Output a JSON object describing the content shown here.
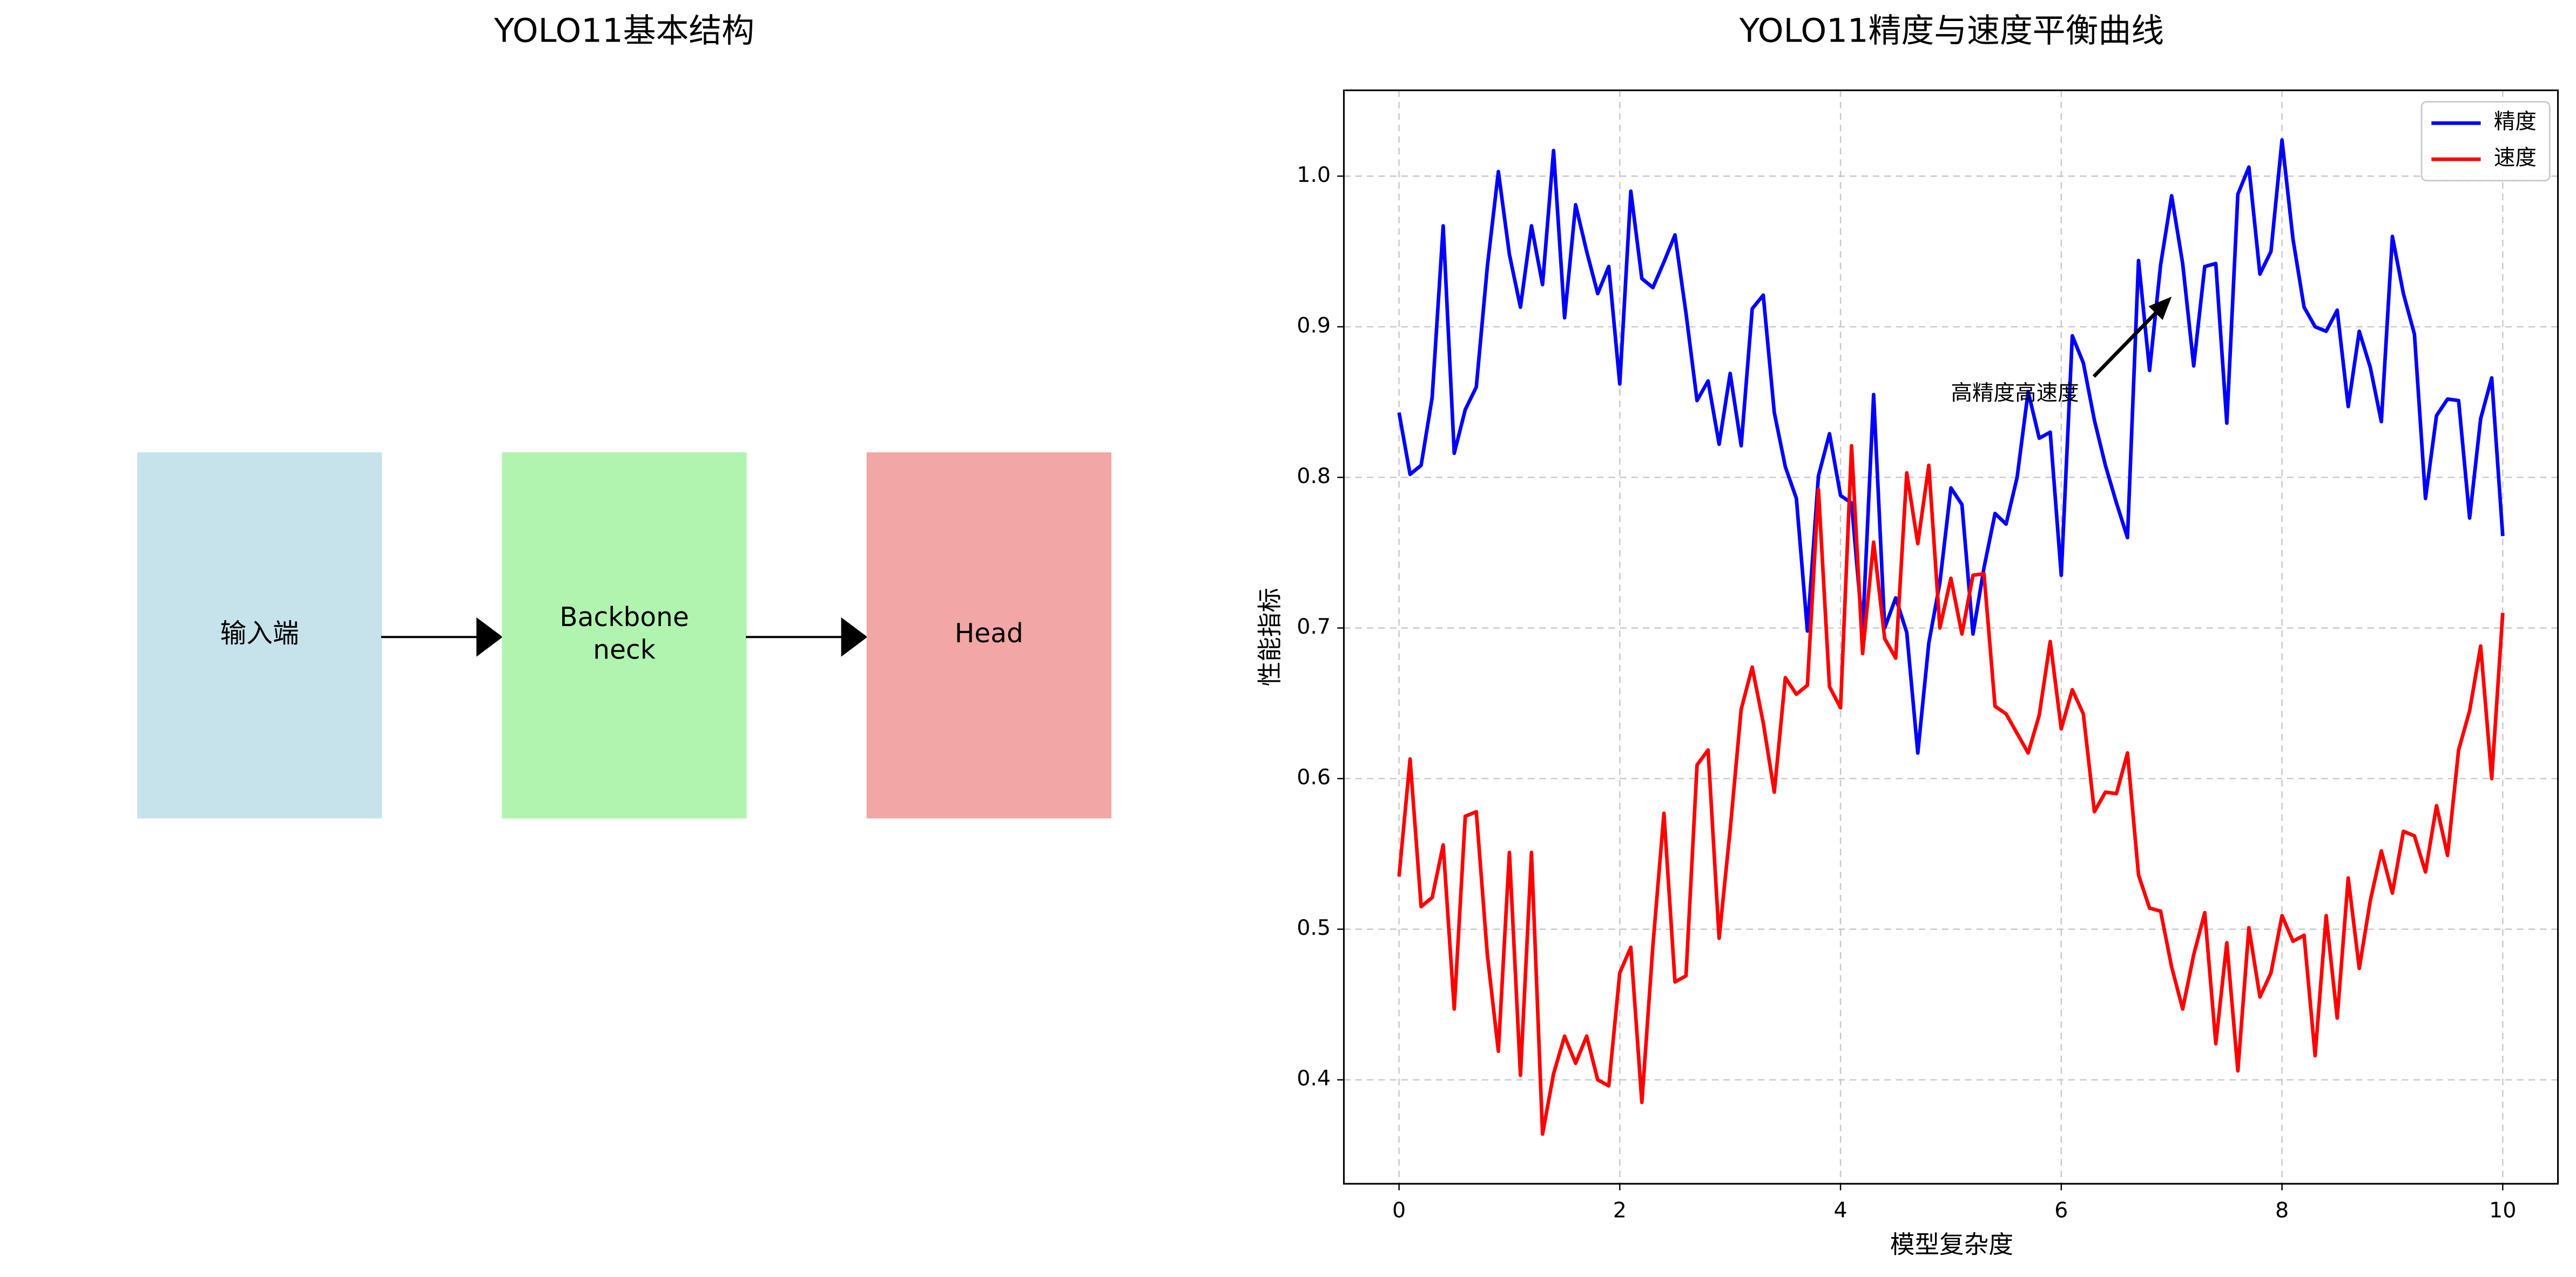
{
  "diagram": {
    "title": "YOLO11基本结构",
    "nodes": [
      {
        "lines": [
          "输入端"
        ],
        "color": "#c6e3ec"
      },
      {
        "lines": [
          "Backbone",
          "neck"
        ],
        "color": "#b0f4b0"
      },
      {
        "lines": [
          "Head"
        ],
        "color": "#f2a6a6"
      }
    ]
  },
  "chart_data": {
    "type": "line",
    "title": "YOLO11精度与速度平衡曲线",
    "xlabel": "模型复杂度",
    "ylabel": "性能指标",
    "x": [
      0,
      0.1,
      0.2,
      0.3,
      0.4,
      0.5,
      0.6,
      0.7,
      0.8,
      0.9,
      1,
      1.1,
      1.2,
      1.3,
      1.4,
      1.5,
      1.6,
      1.7,
      1.8,
      1.9,
      2,
      2.1,
      2.2,
      2.3,
      2.4,
      2.5,
      2.6,
      2.7,
      2.8,
      2.9,
      3,
      3.1,
      3.2,
      3.3,
      3.4,
      3.5,
      3.6,
      3.7,
      3.8,
      3.9,
      4,
      4.1,
      4.2,
      4.3,
      4.4,
      4.5,
      4.6,
      4.7,
      4.8,
      4.9,
      5,
      5.1,
      5.2,
      5.3,
      5.4,
      5.5,
      5.6,
      5.7,
      5.8,
      5.9,
      6,
      6.1,
      6.2,
      6.3,
      6.4,
      6.5,
      6.6,
      6.7,
      6.8,
      6.9,
      7,
      7.1,
      7.2,
      7.3,
      7.4,
      7.5,
      7.6,
      7.7,
      7.8,
      7.9,
      8,
      8.1,
      8.2,
      8.3,
      8.4,
      8.5,
      8.6,
      8.7,
      8.8,
      8.9,
      9,
      9.1,
      9.2,
      9.3,
      9.4,
      9.5,
      9.6,
      9.7,
      9.8,
      9.9,
      10
    ],
    "series": [
      {
        "name": "精度",
        "color": "#0000ff",
        "values": [
          0.843,
          0.802,
          0.808,
          0.853,
          0.967,
          0.816,
          0.845,
          0.86,
          0.94,
          1.003,
          0.948,
          0.913,
          0.967,
          0.928,
          1.017,
          0.906,
          0.981,
          0.95,
          0.922,
          0.94,
          0.862,
          0.99,
          0.932,
          0.926,
          0.943,
          0.961,
          0.909,
          0.851,
          0.864,
          0.822,
          0.869,
          0.821,
          0.912,
          0.921,
          0.843,
          0.807,
          0.786,
          0.698,
          0.801,
          0.829,
          0.788,
          0.783,
          0.698,
          0.855,
          0.7,
          0.72,
          0.697,
          0.617,
          0.69,
          0.73,
          0.793,
          0.782,
          0.696,
          0.74,
          0.776,
          0.769,
          0.8,
          0.857,
          0.826,
          0.83,
          0.735,
          0.894,
          0.876,
          0.838,
          0.808,
          0.783,
          0.76,
          0.944,
          0.871,
          0.941,
          0.987,
          0.942,
          0.874,
          0.94,
          0.942,
          0.836,
          0.988,
          1.006,
          0.935,
          0.95,
          1.024,
          0.958,
          0.913,
          0.9,
          0.897,
          0.911,
          0.847,
          0.897,
          0.873,
          0.837,
          0.96,
          0.922,
          0.895,
          0.786,
          0.841,
          0.852,
          0.851,
          0.773,
          0.839,
          0.866,
          0.761
        ]
      },
      {
        "name": "速度",
        "color": "#ff0000",
        "values": [
          0.535,
          0.613,
          0.515,
          0.521,
          0.556,
          0.447,
          0.575,
          0.578,
          0.483,
          0.419,
          0.551,
          0.403,
          0.551,
          0.364,
          0.404,
          0.429,
          0.411,
          0.429,
          0.4,
          0.396,
          0.471,
          0.488,
          0.385,
          0.489,
          0.577,
          0.465,
          0.469,
          0.609,
          0.619,
          0.494,
          0.566,
          0.646,
          0.674,
          0.637,
          0.591,
          0.667,
          0.656,
          0.662,
          0.792,
          0.661,
          0.647,
          0.821,
          0.683,
          0.757,
          0.693,
          0.68,
          0.803,
          0.756,
          0.808,
          0.7,
          0.733,
          0.696,
          0.735,
          0.736,
          0.648,
          0.643,
          0.63,
          0.617,
          0.642,
          0.691,
          0.633,
          0.659,
          0.643,
          0.578,
          0.591,
          0.59,
          0.617,
          0.536,
          0.514,
          0.512,
          0.475,
          0.447,
          0.483,
          0.511,
          0.424,
          0.491,
          0.406,
          0.501,
          0.455,
          0.471,
          0.509,
          0.492,
          0.496,
          0.416,
          0.509,
          0.441,
          0.534,
          0.474,
          0.519,
          0.552,
          0.524,
          0.565,
          0.562,
          0.538,
          0.582,
          0.549,
          0.619,
          0.645,
          0.688,
          0.6,
          0.71
        ]
      }
    ],
    "xlim": [
      -0.5,
      10.5
    ],
    "ylim": [
      0.331,
      1.057
    ],
    "xticks": [
      0,
      2,
      4,
      6,
      8,
      10
    ],
    "yticks": [
      0.4,
      0.5,
      0.6,
      0.7,
      0.8,
      0.9,
      {
        "value": 1,
        "label": "1.0"
      }
    ],
    "grid": true,
    "legend": "upper right",
    "annotations": [
      {
        "text": "高精度高速度",
        "xy": [
          7,
          0.92
        ],
        "xytext": [
          5,
          0.855
        ]
      }
    ]
  }
}
